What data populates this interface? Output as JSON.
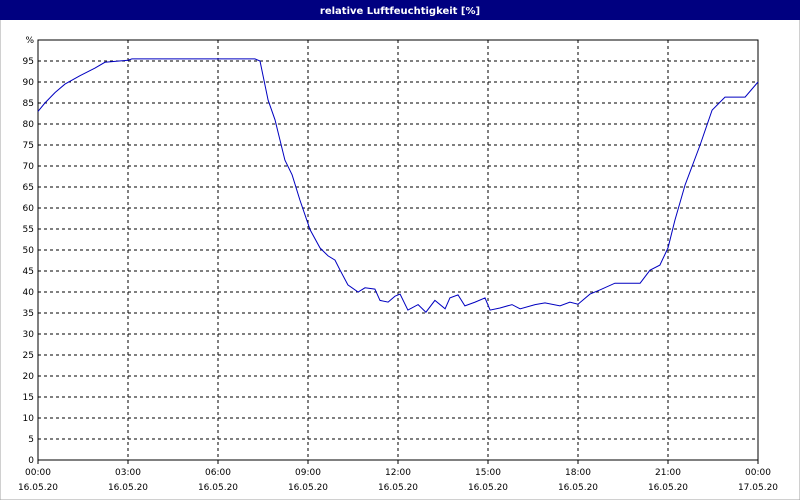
{
  "chart_data": {
    "type": "line",
    "title": "relative Luftfeuchtigkeit [%]",
    "x": [
      0,
      0.23,
      0.57,
      0.9,
      1.4,
      1.9,
      2.23,
      3,
      3.13,
      7.23,
      7.4,
      7.67,
      7.9,
      8.23,
      8.47,
      8.73,
      9.07,
      9.4,
      9.67,
      9.9,
      10.07,
      10.33,
      10.67,
      10.9,
      11.23,
      11.4,
      11.67,
      11.9,
      12.07,
      12.33,
      12.67,
      12.93,
      13.23,
      13.57,
      13.73,
      14,
      14.23,
      14.57,
      14.9,
      15.07,
      15.4,
      15.8,
      16.07,
      16.57,
      16.9,
      17.4,
      17.73,
      18,
      18.4,
      18.73,
      19.23,
      20.07,
      20.4,
      20.73,
      21,
      21.23,
      21.57,
      22.07,
      22.47,
      22.9,
      23.57,
      24
    ],
    "series": [
      {
        "name": "relative Luftfeuchtigkeit",
        "color": "#0000c0",
        "values": [
          83,
          85,
          87.5,
          89.5,
          91.5,
          93.3,
          94.7,
          95.2,
          95.5,
          95.5,
          95,
          85.7,
          81,
          71.4,
          67.9,
          61.9,
          54.8,
          50.5,
          48.6,
          47.6,
          45.2,
          41.7,
          40,
          41,
          40.7,
          38,
          37.6,
          39,
          39.5,
          35.7,
          37,
          35.2,
          38,
          36,
          38.6,
          39.3,
          36.7,
          37.6,
          38.6,
          35.7,
          36.2,
          37,
          36,
          37,
          37.4,
          36.7,
          37.6,
          37.1,
          39.5,
          40.5,
          42.1,
          42.1,
          45.2,
          46.4,
          50.5,
          57.1,
          65.5,
          75,
          83.3,
          86.4,
          86.4,
          90
        ]
      }
    ],
    "xlim": [
      0,
      24
    ],
    "xticks": [
      {
        "value": 0,
        "label": "00:00 16.05.20"
      },
      {
        "value": 3,
        "label": "03:00 16.05.20"
      },
      {
        "value": 6,
        "label": "06:00 16.05.20"
      },
      {
        "value": 9,
        "label": "09:00 16.05.20"
      },
      {
        "value": 12,
        "label": "12:00 16.05.20"
      },
      {
        "value": 15,
        "label": "15:00 16.05.20"
      },
      {
        "value": 18,
        "label": "18:00 16.05.20"
      },
      {
        "value": 21,
        "label": "21:00 16.05.20"
      },
      {
        "value": 24,
        "label": "00:00 17.05.20"
      }
    ],
    "ylim": [
      0,
      100
    ],
    "yticks": [
      0,
      5,
      10,
      15,
      20,
      25,
      30,
      35,
      40,
      45,
      50,
      55,
      60,
      65,
      70,
      75,
      80,
      85,
      90,
      95,
      {
        "value": 100,
        "label": "%"
      }
    ],
    "grid": true
  }
}
